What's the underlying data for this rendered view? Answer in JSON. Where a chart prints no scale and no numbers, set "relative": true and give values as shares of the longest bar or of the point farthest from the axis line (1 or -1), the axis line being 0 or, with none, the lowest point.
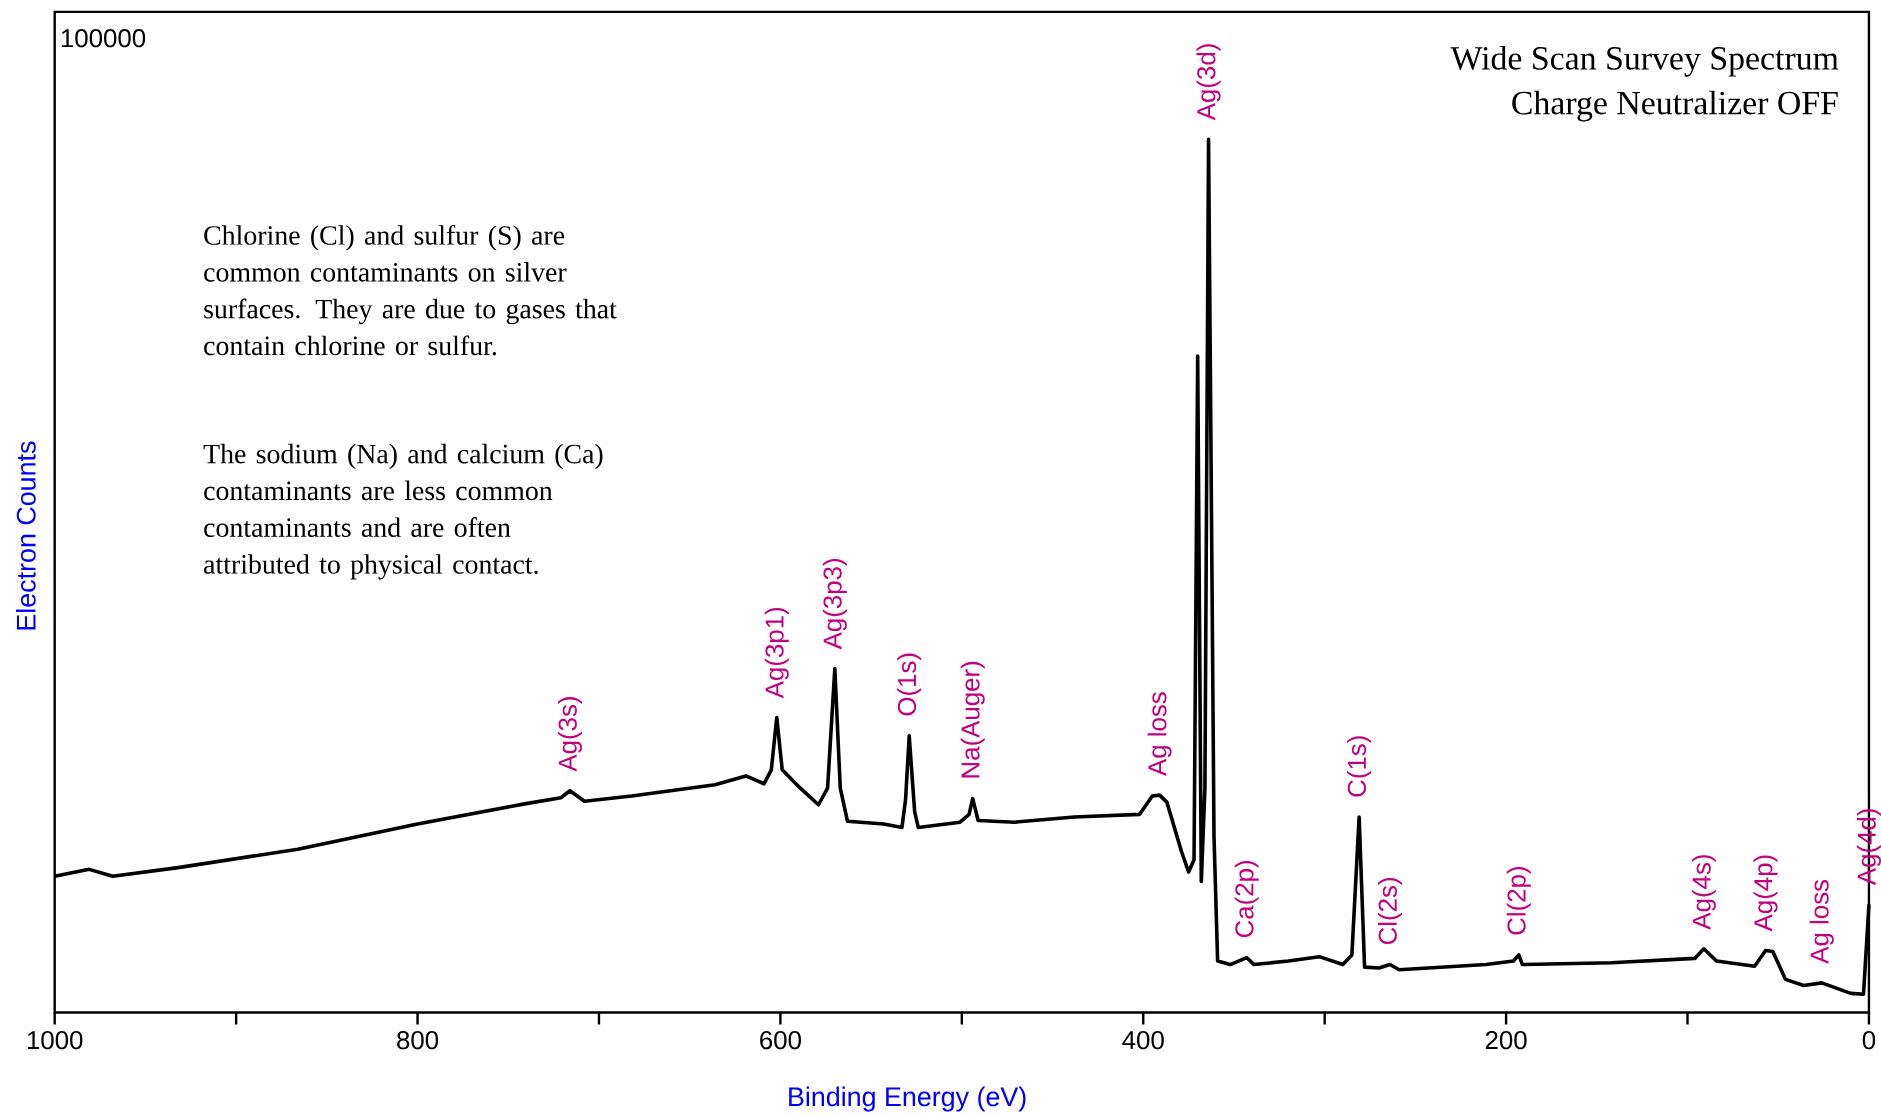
{
  "chart_data": {
    "type": "line",
    "title": "Wide Scan Survey Spectrum",
    "subtitle": "Charge Neutralizer OFF",
    "xlabel": "Binding Energy (eV)",
    "ylabel": "Electron Counts",
    "relative": true,
    "color": "#000000",
    "line_style": "solid",
    "marker": "none",
    "xlim": [
      1000,
      0
    ],
    "xticks": [
      1000,
      {
        "value": 900,
        "label": null
      },
      800,
      {
        "value": 700,
        "label": null
      },
      600,
      {
        "value": 500,
        "label": null
      },
      400,
      {
        "value": 300,
        "label": null
      },
      200,
      {
        "value": 100,
        "label": null
      },
      0
    ],
    "x": [
      1000,
      981,
      968,
      932,
      866,
      800,
      741,
      721,
      716,
      708,
      682,
      636,
      619,
      609,
      605,
      602,
      599,
      589,
      579,
      574,
      570,
      567,
      563,
      543,
      533,
      531,
      529,
      526,
      524,
      501,
      496,
      494,
      491,
      471,
      438,
      402,
      395,
      391,
      387,
      379,
      375,
      372,
      370,
      368,
      366,
      364,
      361,
      359,
      352,
      343,
      339,
      320,
      303,
      290,
      285,
      281,
      278,
      270,
      264,
      259,
      211,
      196,
      193,
      191,
      142,
      96,
      91,
      84,
      63,
      57,
      53,
      46,
      36,
      26,
      10,
      3,
      0
    ],
    "values": [
      0.156,
      0.164,
      0.156,
      0.166,
      0.187,
      0.216,
      0.239,
      0.246,
      0.254,
      0.242,
      0.248,
      0.261,
      0.271,
      0.262,
      0.278,
      0.338,
      0.278,
      0.257,
      0.238,
      0.257,
      0.394,
      0.257,
      0.219,
      0.216,
      0.212,
      0.244,
      0.317,
      0.23,
      0.212,
      0.218,
      0.227,
      0.245,
      0.22,
      0.218,
      0.224,
      0.227,
      0.248,
      0.249,
      0.241,
      0.185,
      0.161,
      0.175,
      0.752,
      0.15,
      0.257,
      1.0,
      0.202,
      0.059,
      0.055,
      0.063,
      0.055,
      0.059,
      0.064,
      0.055,
      0.066,
      0.224,
      0.052,
      0.051,
      0.055,
      0.049,
      0.055,
      0.059,
      0.066,
      0.055,
      0.057,
      0.062,
      0.073,
      0.059,
      0.053,
      0.071,
      0.07,
      0.038,
      0.031,
      0.034,
      0.022,
      0.021,
      0.124
    ],
    "annotations": [
      "100000",
      "Chlorine (Cl) and sulfur (S) are common contaminants on silver surfaces.  They are due to gases that contain chlorine or sulfur.",
      "The sodium (Na) and calcium (Ca) contaminants are less common contaminants and are often attributed to physical contact.",
      {
        "text": "Ag(3s)",
        "x": 716,
        "y": 0.254
      },
      {
        "text": "Ag(3p1)",
        "x": 602,
        "y": 0.338
      },
      {
        "text": "Ag(3p3)",
        "x": 570,
        "y": 0.394
      },
      {
        "text": "O(1s)",
        "x": 529,
        "y": 0.317
      },
      {
        "text": "Na(Auger)",
        "x": 494,
        "y": 0.245
      },
      {
        "text": "Ag loss",
        "x": 391,
        "y": 0.249
      },
      {
        "text": "Ag(3d)",
        "x": 364,
        "y": 1.0
      },
      {
        "text": "Ca(2p)",
        "x": 343,
        "y": 0.063
      },
      {
        "text": "C(1s)",
        "x": 281,
        "y": 0.224
      },
      {
        "text": "Cl(2s)",
        "x": 264,
        "y": 0.055
      },
      {
        "text": "Cl(2p)",
        "x": 193,
        "y": 0.066
      },
      {
        "text": "Ag(4s)",
        "x": 91,
        "y": 0.073
      },
      {
        "text": "Ag(4p)",
        "x": 57,
        "y": 0.071
      },
      {
        "text": "Ag loss",
        "x": 26,
        "y": 0.034
      },
      {
        "text": "Ag(4d)",
        "x": 0,
        "y": 0.124
      }
    ]
  }
}
